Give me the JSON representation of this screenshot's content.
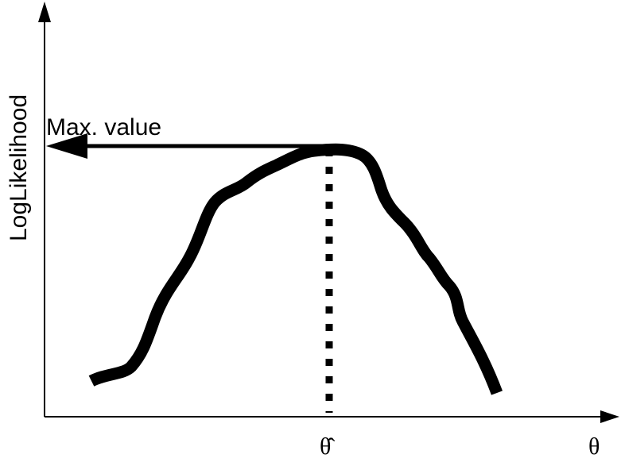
{
  "labels": {
    "y_axis": "LogLikelihood",
    "max_value": "Max. value",
    "theta_hat": "θ̂",
    "theta": "θ"
  },
  "colors": {
    "ink": "#000000",
    "background": "#ffffff"
  }
}
